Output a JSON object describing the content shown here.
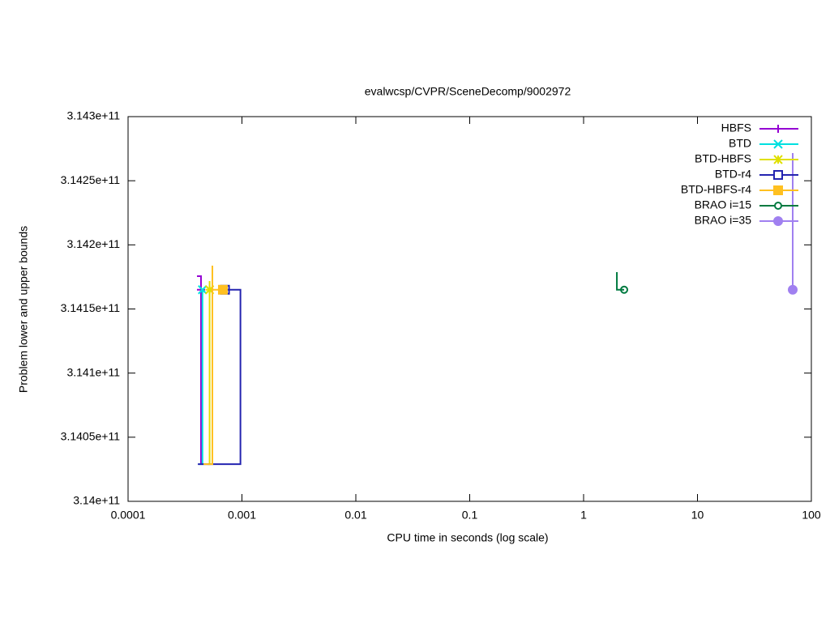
{
  "chart_data": {
    "type": "line",
    "title": "evalwcsp/CVPR/SceneDecomp/9002972",
    "x_label": "CPU time in seconds (log scale)",
    "y_label": "Problem lower and upper bounds",
    "xscale": "log",
    "xlim": [
      0.0001,
      100
    ],
    "xticks": [
      0.0001,
      0.001,
      0.01,
      0.1,
      1,
      10,
      100
    ],
    "ylim": [
      314000000000,
      314300000000
    ],
    "yticks": [
      {
        "value": 314000000000,
        "label": "3.14e+11"
      },
      {
        "value": 314050000000,
        "label": "3.1405e+11"
      },
      {
        "value": 314100000000,
        "label": "3.141e+11"
      },
      {
        "value": 314150000000,
        "label": "3.1415e+11"
      },
      {
        "value": 314200000000,
        "label": "3.142e+11"
      },
      {
        "value": 314250000000,
        "label": "3.1425e+11"
      },
      {
        "value": 314300000000,
        "label": "3.143e+11"
      }
    ],
    "legend": "top-right",
    "series": [
      {
        "name": "HBFS",
        "color": "#9400d3",
        "marker": "plus",
        "x": [
          0.000403,
          0.000437,
          0.000437,
          0.000437
        ],
        "values": [
          314175600000,
          314175600000,
          314029000000,
          314165000000
        ]
      },
      {
        "name": "BTD",
        "color": "#00e0e0",
        "marker": "cross",
        "x": [
          0.00042,
          0.00045,
          0.00045
        ],
        "values": [
          314029000000,
          314029000000,
          314165000000
        ]
      },
      {
        "name": "BTD-HBFS",
        "color": "#e0e000",
        "marker": "star",
        "x": [
          0.0005,
          0.00052,
          0.00052,
          0.00052
        ],
        "values": [
          314029000000,
          314029000000,
          314171800000,
          314165000000
        ]
      },
      {
        "name": "BTD-r4",
        "color": "#2424b0",
        "marker": "box-open",
        "x": [
          0.00041,
          0.00097,
          0.00097,
          0.00071
        ],
        "values": [
          314029000000,
          314029000000,
          314165000000,
          314165000000
        ]
      },
      {
        "name": "BTD-HBFS-r4",
        "color": "#ffc020",
        "marker": "box-filled",
        "x": [
          0.00046,
          0.00055,
          0.00055,
          0.00055,
          0.00068
        ],
        "values": [
          314029000000,
          314029000000,
          314183800000,
          314165000000,
          314165000000
        ]
      },
      {
        "name": "BRAO i=15",
        "color": "#007a40",
        "marker": "circle-open",
        "x": [
          1.96,
          1.96,
          2.27
        ],
        "values": [
          314178700000,
          314165000000,
          314165000000
        ]
      },
      {
        "name": "BRAO i=35",
        "color": "#a080f0",
        "marker": "circle-filled",
        "x": [
          68.6,
          68.6
        ],
        "values": [
          314271600000,
          314165000000
        ]
      }
    ]
  }
}
